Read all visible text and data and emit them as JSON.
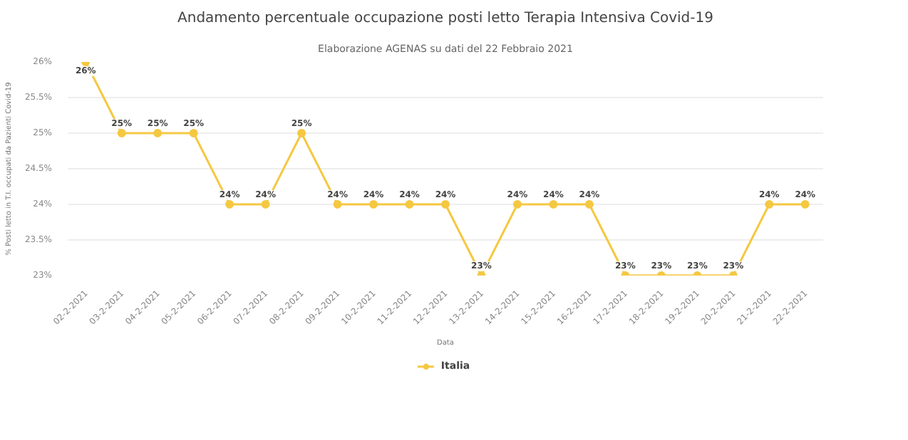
{
  "chart_data": {
    "type": "line",
    "title": "Andamento percentuale occupazione posti letto Terapia Intensiva Covid-19",
    "subtitle": "Elaborazione AGENAS su dati del 22 Febbraio 2021",
    "xlabel": "Data",
    "ylabel": "% Posti letto in T.I. occupati da Pazienti Covid-19",
    "categories": [
      "02-2-2021",
      "03-2-2021",
      "04-2-2021",
      "05-2-2021",
      "06-2-2021",
      "07-2-2021",
      "08-2-2021",
      "09-2-2021",
      "10-2-2021",
      "11-2-2021",
      "12-2-2021",
      "13-2-2021",
      "14-2-2021",
      "15-2-2021",
      "16-2-2021",
      "17-2-2021",
      "18-2-2021",
      "19-2-2021",
      "20-2-2021",
      "21-2-2021",
      "22-2-2021"
    ],
    "series": [
      {
        "name": "Italia",
        "color": "#f5c842",
        "values": [
          26,
          25,
          25,
          25,
          24,
          24,
          25,
          24,
          24,
          24,
          24,
          23,
          24,
          24,
          24,
          23,
          23,
          23,
          23,
          24,
          24
        ]
      }
    ],
    "ylim": [
      23,
      26
    ],
    "yticks": [
      {
        "value": 23,
        "label": "23%"
      },
      {
        "value": 23.5,
        "label": "23.5%"
      },
      {
        "value": 24,
        "label": "24%"
      },
      {
        "value": 24.5,
        "label": "24.5%"
      },
      {
        "value": 25,
        "label": "25%"
      },
      {
        "value": 25.5,
        "label": "25.5%"
      },
      {
        "value": 26,
        "label": "26%"
      }
    ],
    "grid": "y",
    "legend": "bottom",
    "marker": "circle",
    "line_style": "solid",
    "value_labels": [
      "26%",
      "25%",
      "25%",
      "25%",
      "24%",
      "24%",
      "25%",
      "24%",
      "24%",
      "24%",
      "24%",
      "23%",
      "24%",
      "24%",
      "24%",
      "23%",
      "23%",
      "23%",
      "23%",
      "24%",
      "24%"
    ]
  }
}
